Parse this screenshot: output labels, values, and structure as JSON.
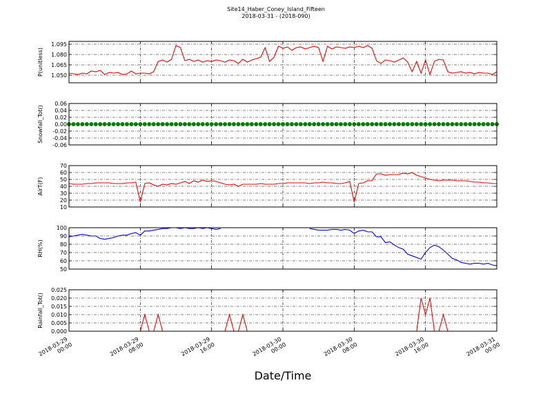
{
  "chart_data": {
    "type": "multi-panel",
    "title": "Site14_Haber_Coney_Island_Fifteen",
    "subtitle": "2018-03-31 - (2018-090)",
    "xlabel": "Date/Time",
    "xlim": [
      "2018-03-29 00:00",
      "2018-03-31 00:00"
    ],
    "xticks": [
      "2018-03-29 00:00",
      "2018-03-29 08:00",
      "2018-03-29 16:00",
      "2018-03-30 00:00",
      "2018-03-30 08:00",
      "2018-03-30 16:00",
      "2018-03-31 00:00"
    ],
    "x": [
      "2018-03-29 00:00",
      "2018-03-29 00:30",
      "2018-03-29 01:00",
      "2018-03-29 01:30",
      "2018-03-29 02:00",
      "2018-03-29 02:30",
      "2018-03-29 03:00",
      "2018-03-29 03:30",
      "2018-03-29 04:00",
      "2018-03-29 04:30",
      "2018-03-29 05:00",
      "2018-03-29 05:30",
      "2018-03-29 06:00",
      "2018-03-29 06:30",
      "2018-03-29 07:00",
      "2018-03-29 07:30",
      "2018-03-29 08:00",
      "2018-03-29 08:30",
      "2018-03-29 09:00",
      "2018-03-29 09:30",
      "2018-03-29 10:00",
      "2018-03-29 10:30",
      "2018-03-29 11:00",
      "2018-03-29 11:30",
      "2018-03-29 12:00",
      "2018-03-29 12:30",
      "2018-03-29 13:00",
      "2018-03-29 13:30",
      "2018-03-29 14:00",
      "2018-03-29 14:30",
      "2018-03-29 15:00",
      "2018-03-29 15:30",
      "2018-03-29 16:00",
      "2018-03-29 16:30",
      "2018-03-29 17:00",
      "2018-03-29 17:30",
      "2018-03-29 18:00",
      "2018-03-29 18:30",
      "2018-03-29 19:00",
      "2018-03-29 19:30",
      "2018-03-29 20:00",
      "2018-03-29 20:30",
      "2018-03-29 21:00",
      "2018-03-29 21:30",
      "2018-03-29 22:00",
      "2018-03-29 22:30",
      "2018-03-29 23:00",
      "2018-03-29 23:30",
      "2018-03-30 00:00",
      "2018-03-30 00:30",
      "2018-03-30 01:00",
      "2018-03-30 01:30",
      "2018-03-30 02:00",
      "2018-03-30 02:30",
      "2018-03-30 03:00",
      "2018-03-30 03:30",
      "2018-03-30 04:00",
      "2018-03-30 04:30",
      "2018-03-30 05:00",
      "2018-03-30 05:30",
      "2018-03-30 06:00",
      "2018-03-30 06:30",
      "2018-03-30 07:00",
      "2018-03-30 07:30",
      "2018-03-30 08:00",
      "2018-03-30 08:30",
      "2018-03-30 09:00",
      "2018-03-30 09:30",
      "2018-03-30 10:00",
      "2018-03-30 10:30",
      "2018-03-30 11:00",
      "2018-03-30 11:30",
      "2018-03-30 12:00",
      "2018-03-30 12:30",
      "2018-03-30 13:00",
      "2018-03-30 13:30",
      "2018-03-30 14:00",
      "2018-03-30 14:30",
      "2018-03-30 15:00",
      "2018-03-30 15:30",
      "2018-03-30 16:00",
      "2018-03-30 16:30",
      "2018-03-30 17:00",
      "2018-03-30 17:30",
      "2018-03-30 18:00",
      "2018-03-30 18:30",
      "2018-03-30 19:00",
      "2018-03-30 19:30",
      "2018-03-30 20:00",
      "2018-03-30 20:30",
      "2018-03-30 21:00",
      "2018-03-30 21:30",
      "2018-03-30 22:00",
      "2018-03-30 22:30",
      "2018-03-30 23:00",
      "2018-03-30 23:30",
      "2018-03-31 00:00"
    ],
    "panels": [
      {
        "type": "line",
        "ylabel": "P(unitless)",
        "ylim": [
          1.039,
          1.099
        ],
        "grid": true,
        "yticks": [
          {
            "value": 1.05,
            "label": "1.050"
          },
          {
            "value": 1.065,
            "label": "1.065"
          },
          {
            "value": 1.08,
            "label": "1.080"
          },
          {
            "value": 1.095,
            "label": "1.095"
          }
        ],
        "series": [
          {
            "color": "#ff0000",
            "values": [
              1.053,
              1.052,
              1.051,
              1.053,
              1.052,
              1.056,
              1.055,
              1.057,
              1.051,
              1.054,
              1.053,
              1.054,
              1.051,
              1.052,
              1.056,
              1.052,
              1.053,
              1.053,
              1.052,
              1.055,
              1.07,
              1.072,
              1.069,
              1.073,
              1.093,
              1.09,
              1.071,
              1.073,
              1.07,
              1.072,
              1.069,
              1.071,
              1.07,
              1.072,
              1.071,
              1.069,
              1.072,
              1.071,
              1.067,
              1.073,
              1.069,
              1.072,
              1.074,
              1.076,
              1.09,
              1.07,
              1.076,
              1.092,
              1.089,
              1.091,
              1.086,
              1.09,
              1.091,
              1.088,
              1.09,
              1.092,
              1.09,
              1.07,
              1.092,
              1.088,
              1.091,
              1.09,
              1.089,
              1.091,
              1.09,
              1.092,
              1.09,
              1.093,
              1.089,
              1.071,
              1.067,
              1.072,
              1.071,
              1.069,
              1.072,
              1.075,
              1.069,
              1.055,
              1.07,
              1.053,
              1.072,
              1.051,
              1.07,
              1.073,
              1.072,
              1.055,
              1.053,
              1.054,
              1.055,
              1.053,
              1.054,
              1.052,
              1.054,
              1.053,
              1.053,
              1.051,
              1.055
            ]
          }
        ]
      },
      {
        "type": "scatter",
        "ylabel": "Snowfall_Tot()",
        "ylim": [
          -0.06,
          0.06
        ],
        "grid": true,
        "yticks": [
          -0.06,
          -0.04,
          -0.02,
          {
            "value": 0,
            "label": "0.00"
          },
          0.02,
          0.04,
          0.06
        ],
        "series": [
          {
            "color": "#008000",
            "values": [
              0,
              0,
              0,
              0,
              0,
              0,
              0,
              0,
              0,
              0,
              0,
              0,
              0,
              0,
              0,
              0,
              0,
              0,
              0,
              0,
              0,
              0,
              0,
              0,
              0,
              0,
              0,
              0,
              0,
              0,
              0,
              0,
              0,
              0,
              0,
              0,
              0,
              0,
              0,
              0,
              0,
              0,
              0,
              0,
              0,
              0,
              0,
              0,
              0,
              0,
              0,
              0,
              0,
              0,
              0,
              0,
              0,
              0,
              0,
              0,
              0,
              0,
              0,
              0,
              0,
              0,
              0,
              0,
              0,
              0,
              0,
              0,
              0,
              0,
              0,
              0,
              0,
              0,
              0,
              0,
              0,
              0,
              0,
              0,
              0,
              0,
              0,
              0,
              0,
              0,
              0,
              0,
              0,
              0,
              0,
              0,
              0
            ]
          }
        ]
      },
      {
        "type": "line",
        "ylabel": "AirT(F)",
        "ylim": [
          10,
          70
        ],
        "grid": true,
        "yticks": [
          10,
          20,
          30,
          40,
          50,
          60,
          70
        ],
        "series": [
          {
            "color": "#ff0000",
            "values": [
              44,
              43,
              43,
              43,
              44,
              44,
              45,
              45,
              45,
              45,
              44,
              44,
              44,
              45,
              45,
              46,
              17,
              44,
              45,
              42,
              40,
              43,
              42,
              44,
              43,
              45,
              47,
              44,
              48,
              46,
              49,
              47,
              48,
              47,
              45,
              43,
              42,
              43,
              40,
              43,
              43,
              43,
              43,
              44,
              43,
              43,
              43,
              44,
              44,
              45,
              45,
              45,
              45,
              45,
              44,
              45,
              45,
              46,
              45,
              45,
              44,
              44,
              45,
              47,
              17,
              44,
              45,
              48,
              48,
              58,
              58,
              56,
              57,
              57,
              57,
              59,
              58,
              60,
              56,
              54,
              52,
              50,
              49,
              48,
              49,
              49,
              49,
              48,
              48,
              48,
              47,
              46,
              46,
              45,
              45,
              44,
              44
            ]
          }
        ]
      },
      {
        "type": "line",
        "ylabel": "RH(%)",
        "ylim": [
          50,
          100
        ],
        "grid": true,
        "yticks": [
          50,
          60,
          70,
          80,
          90,
          100
        ],
        "series": [
          {
            "color": "#0000ff",
            "values": [
              89,
              90,
              91,
              92,
              91,
              90,
              90,
              87,
              86,
              87,
              88,
              90,
              91,
              91,
              93,
              94,
              91,
              96,
              96,
              97,
              98,
              99,
              99,
              100,
              100,
              99,
              100,
              99,
              99,
              100,
              99,
              100,
              99,
              98,
              99,
              null,
              null,
              null,
              null,
              null,
              null,
              null,
              null,
              null,
              null,
              null,
              null,
              null,
              null,
              null,
              null,
              null,
              null,
              null,
              99,
              98,
              97,
              97,
              97,
              98,
              98,
              97,
              98,
              97,
              93,
              96,
              97,
              95,
              95,
              89,
              89,
              82,
              83,
              79,
              76,
              74,
              68,
              66,
              64,
              62,
              70,
              76,
              79,
              77,
              73,
              68,
              63,
              61,
              58,
              57,
              56,
              57,
              57,
              56,
              57,
              55,
              54
            ]
          }
        ]
      },
      {
        "type": "line",
        "ylabel": "Rainfall_Tot()",
        "ylim": [
          0,
          0.025
        ],
        "grid": true,
        "yticks": [
          {
            "value": 0,
            "label": "0.000"
          },
          0.005,
          {
            "value": 0.01,
            "label": "0.010"
          },
          0.015,
          {
            "value": 0.02,
            "label": "0.020"
          },
          0.025
        ],
        "series": [
          {
            "color": "#ff0000",
            "values": [
              0,
              0,
              0,
              0,
              0,
              0,
              0,
              0,
              0,
              0,
              0,
              0,
              0,
              0,
              0,
              0,
              0,
              0.01,
              0,
              0,
              0.01,
              0,
              0,
              0,
              0,
              0,
              0,
              0,
              0,
              0,
              0,
              0,
              0,
              0,
              0,
              0,
              0.01,
              0,
              0,
              0.01,
              0,
              0,
              0,
              0,
              0,
              0,
              0,
              0,
              0,
              0,
              0,
              0,
              0,
              0,
              0,
              0,
              0,
              0,
              0,
              0,
              0,
              0,
              0,
              0,
              0,
              0,
              0,
              0,
              0,
              0,
              0,
              0,
              0,
              0,
              0,
              0,
              0,
              0,
              0,
              0.02,
              0.01,
              0.02,
              0,
              0,
              0.01,
              0,
              0,
              0,
              0,
              0,
              0,
              0,
              0,
              0,
              0,
              0,
              0
            ]
          }
        ]
      }
    ]
  }
}
